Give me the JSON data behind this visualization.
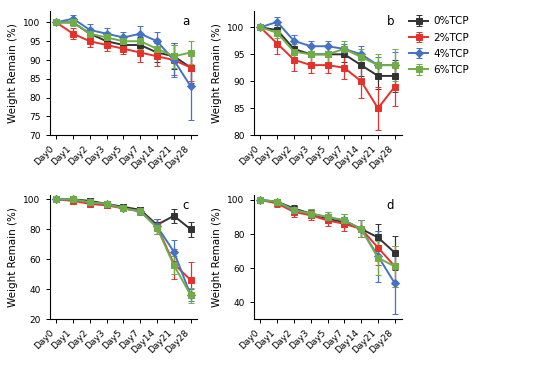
{
  "x_labels": [
    "Day0",
    "Day1",
    "Day2",
    "Day3",
    "Day5",
    "Day7",
    "Day14",
    "Day21",
    "Day28"
  ],
  "x_vals": [
    0,
    1,
    2,
    3,
    4,
    5,
    6,
    7,
    8
  ],
  "colors": [
    "#333333",
    "#e8302a",
    "#4472c4",
    "#70ad47"
  ],
  "markers": [
    "s",
    "s",
    "D",
    "s"
  ],
  "series_labels": [
    "0%TCP",
    "2%TCP",
    "4%TCP",
    "6%TCP"
  ],
  "panel_a": {
    "label": "a",
    "ylim": [
      70,
      103
    ],
    "yticks": [
      70,
      75,
      80,
      85,
      90,
      95,
      100
    ],
    "ylabel": "Weight Remain (%)",
    "series": [
      [
        100,
        100,
        97,
        95,
        94,
        94,
        92,
        91,
        88
      ],
      [
        100,
        97,
        95,
        94,
        93,
        92,
        91,
        90,
        88
      ],
      [
        100,
        101,
        98,
        97,
        96,
        97,
        95,
        90,
        83
      ],
      [
        100,
        100,
        97,
        96,
        95,
        95,
        93,
        91,
        92
      ]
    ],
    "errors": [
      [
        0.3,
        0.8,
        1.2,
        1.0,
        1.5,
        2.0,
        2.5,
        3.5,
        4.0
      ],
      [
        0.3,
        1.5,
        1.5,
        1.5,
        1.5,
        2.5,
        2.5,
        4.0,
        3.5
      ],
      [
        0.3,
        1.0,
        1.5,
        1.5,
        1.5,
        2.0,
        2.5,
        4.5,
        9.0
      ],
      [
        0.3,
        1.0,
        1.5,
        1.5,
        1.5,
        2.0,
        2.5,
        3.0,
        3.0
      ]
    ]
  },
  "panel_b": {
    "label": "b",
    "ylim": [
      80,
      103
    ],
    "yticks": [
      80,
      85,
      90,
      95,
      100
    ],
    "ylabel": "Weight Remain (%)",
    "series": [
      [
        100,
        99.5,
        96,
        95,
        95,
        95,
        93,
        91,
        91
      ],
      [
        100,
        97,
        94,
        93,
        93,
        92.5,
        90,
        85,
        89
      ],
      [
        100,
        101,
        97.5,
        96.5,
        96.5,
        96,
        95,
        93,
        93
      ],
      [
        100,
        99,
        95.5,
        95,
        95,
        96,
        94.5,
        93,
        93
      ]
    ],
    "errors": [
      [
        0.3,
        1.0,
        1.5,
        1.5,
        1.5,
        1.5,
        2.0,
        2.5,
        3.0
      ],
      [
        0.3,
        2.0,
        2.0,
        1.5,
        1.5,
        2.0,
        3.0,
        4.0,
        3.5
      ],
      [
        0.3,
        1.0,
        1.0,
        1.0,
        1.0,
        1.0,
        1.5,
        1.5,
        2.5
      ],
      [
        0.3,
        1.0,
        1.5,
        1.5,
        1.5,
        1.5,
        1.5,
        2.0,
        3.0
      ]
    ]
  },
  "panel_c": {
    "label": "c",
    "ylim": [
      20,
      103
    ],
    "yticks": [
      20,
      40,
      60,
      80,
      100
    ],
    "ylabel": "Weight Remain (%)",
    "series": [
      [
        100,
        100,
        99,
        97,
        95,
        93,
        83,
        89,
        80
      ],
      [
        100,
        99,
        97,
        96,
        94,
        92,
        82,
        57,
        46
      ],
      [
        100,
        100,
        98,
        97,
        94,
        92,
        82,
        65,
        36
      ],
      [
        100,
        100,
        98,
        97,
        94,
        92,
        81,
        56,
        36
      ]
    ],
    "errors": [
      [
        0.3,
        1.0,
        1.0,
        1.0,
        1.5,
        2.0,
        4.0,
        4.5,
        5.0
      ],
      [
        0.3,
        1.5,
        1.5,
        1.5,
        2.0,
        2.5,
        5.0,
        10.0,
        12.0
      ],
      [
        0.3,
        1.5,
        1.5,
        1.5,
        2.0,
        2.5,
        5.0,
        8.0,
        4.0
      ],
      [
        0.3,
        1.5,
        1.5,
        1.5,
        2.0,
        2.5,
        4.0,
        6.0,
        5.0
      ]
    ]
  },
  "panel_d": {
    "label": "d",
    "ylim": [
      30,
      103
    ],
    "yticks": [
      40,
      60,
      80,
      100
    ],
    "ylabel": "Weight Remain (%)",
    "series": [
      [
        100,
        99,
        95,
        92,
        89,
        87,
        83,
        78,
        69
      ],
      [
        100,
        98,
        93,
        91,
        88,
        86,
        83,
        72,
        61
      ],
      [
        100,
        99,
        94,
        92,
        90,
        88,
        83,
        67,
        51
      ],
      [
        100,
        99,
        94,
        92,
        90,
        88,
        83,
        66,
        61
      ]
    ],
    "errors": [
      [
        0.3,
        1.5,
        2.0,
        2.0,
        2.5,
        3.0,
        5.0,
        8.0,
        10.0
      ],
      [
        0.3,
        2.0,
        3.0,
        3.0,
        3.5,
        4.0,
        5.0,
        10.0,
        12.0
      ],
      [
        0.3,
        1.5,
        2.5,
        2.5,
        3.0,
        3.5,
        5.0,
        15.0,
        18.0
      ],
      [
        0.3,
        1.5,
        2.0,
        2.5,
        3.0,
        3.5,
        5.0,
        10.0,
        12.0
      ]
    ]
  },
  "markersize": 4.5,
  "linewidth": 1.4,
  "capsize": 2.5,
  "elinewidth": 0.9,
  "font_size": 7.5,
  "tick_font_size": 6.5,
  "label_font_size": 8.5
}
